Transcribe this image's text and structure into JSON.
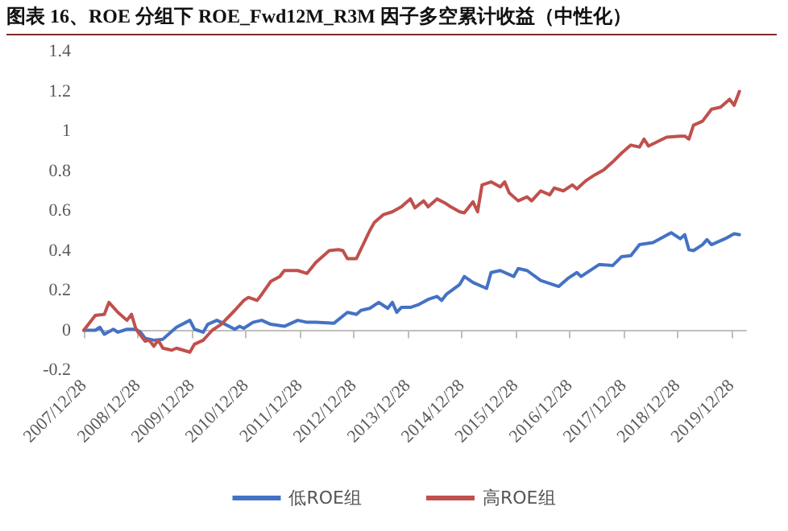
{
  "chart_data": {
    "type": "line",
    "title": "图表 16、ROE 分组下 ROE_Fwd12M_R3M 因子多空累计收益（中性化）",
    "xlim": [
      "2007-12-28",
      "2020-04-05"
    ],
    "xticks": [
      {
        "value": "2007-12-28",
        "label": "2007/12/28"
      },
      {
        "value": "2008-12-28",
        "label": "2008/12/28"
      },
      {
        "value": "2009-12-28",
        "label": "2009/12/28"
      },
      {
        "value": "2010-12-28",
        "label": "2010/12/28"
      },
      {
        "value": "2011-12-28",
        "label": "2011/12/28"
      },
      {
        "value": "2012-12-28",
        "label": "2012/12/28"
      },
      {
        "value": "2013-12-28",
        "label": "2013/12/28"
      },
      {
        "value": "2014-12-28",
        "label": "2014/12/28"
      },
      {
        "value": "2015-12-28",
        "label": "2015/12/28"
      },
      {
        "value": "2016-12-28",
        "label": "2016/12/28"
      },
      {
        "value": "2017-12-28",
        "label": "2017/12/28"
      },
      {
        "value": "2018-12-28",
        "label": "2018/12/28"
      },
      {
        "value": "2019-12-28",
        "label": "2019/12/28"
      }
    ],
    "ylim": [
      -0.2,
      1.4
    ],
    "yticks": [
      -0.2,
      0,
      0.2,
      0.4,
      0.6,
      0.8,
      1,
      1.2,
      1.4
    ],
    "grid": false,
    "legend": "bottom",
    "marker": "none",
    "line_style": "solid",
    "series": [
      {
        "name": "低ROE组",
        "color": "#4472c4",
        "x": [
          "2007-12-28",
          "2008-03",
          "2008-04",
          "2008-05",
          "2008-07",
          "2008-08",
          "2008-10",
          "2008-12",
          "2009-01",
          "2009-02",
          "2009-04",
          "2009-06",
          "2009-07",
          "2009-09",
          "2009-12",
          "2010-01",
          "2010-03",
          "2010-04",
          "2010-06",
          "2010-07",
          "2010-10",
          "2010-11",
          "2010-12",
          "2011-02",
          "2011-04",
          "2011-06",
          "2011-09",
          "2011-12",
          "2012-02",
          "2012-04",
          "2012-08",
          "2012-11",
          "2013-01",
          "2013-02",
          "2013-04",
          "2013-06",
          "2013-08",
          "2013-09",
          "2013-10",
          "2013-11",
          "2014-01",
          "2014-03",
          "2014-05",
          "2014-07",
          "2014-08",
          "2014-09",
          "2014-12",
          "2015-01",
          "2015-03",
          "2015-06",
          "2015-07",
          "2015-09",
          "2015-12",
          "2016-01",
          "2016-03",
          "2016-06",
          "2016-10",
          "2016-12",
          "2017-02",
          "2017-03",
          "2017-07",
          "2017-10",
          "2017-12",
          "2018-02",
          "2018-04",
          "2018-07",
          "2018-11",
          "2019-01",
          "2019-02",
          "2019-03",
          "2019-04",
          "2019-06",
          "2019-07",
          "2019-08",
          "2019-11",
          "2020-01",
          "2020-02-20"
        ],
        "values": [
          0,
          0,
          0.015,
          -0.02,
          0.005,
          -0.01,
          0.005,
          0.005,
          -0.01,
          -0.04,
          -0.05,
          -0.045,
          -0.025,
          0.015,
          0.05,
          0.005,
          -0.01,
          0.03,
          0.05,
          0.04,
          0.005,
          0.02,
          0.01,
          0.04,
          0.05,
          0.03,
          0.02,
          0.05,
          0.04,
          0.04,
          0.035,
          0.09,
          0.08,
          0.1,
          0.11,
          0.14,
          0.11,
          0.14,
          0.09,
          0.115,
          0.115,
          0.13,
          0.155,
          0.17,
          0.15,
          0.18,
          0.23,
          0.27,
          0.24,
          0.21,
          0.29,
          0.3,
          0.27,
          0.31,
          0.3,
          0.25,
          0.22,
          0.26,
          0.29,
          0.27,
          0.33,
          0.325,
          0.37,
          0.375,
          0.43,
          0.44,
          0.49,
          0.46,
          0.48,
          0.405,
          0.4,
          0.43,
          0.455,
          0.43,
          0.46,
          0.485,
          0.48
        ]
      },
      {
        "name": "高ROE组",
        "color": "#c0504d",
        "x": [
          "2007-12-28",
          "2008-03",
          "2008-05",
          "2008-06",
          "2008-08",
          "2008-10",
          "2008-11",
          "2008-12",
          "2009-02",
          "2009-03",
          "2009-04",
          "2009-05",
          "2009-06",
          "2009-08",
          "2009-09",
          "2009-12",
          "2010-01",
          "2010-03",
          "2010-05",
          "2010-07",
          "2010-10",
          "2010-12",
          "2011-01",
          "2011-03",
          "2011-04",
          "2011-06",
          "2011-08",
          "2011-09",
          "2011-12",
          "2012-02",
          "2012-04",
          "2012-07",
          "2012-09",
          "2012-10",
          "2012-11",
          "2013-01",
          "2013-04",
          "2013-05",
          "2013-07",
          "2013-09",
          "2013-11",
          "2014-01",
          "2014-02",
          "2014-04",
          "2014-05",
          "2014-07",
          "2014-09",
          "2014-10",
          "2014-12",
          "2015-01",
          "2015-03",
          "2015-04",
          "2015-05",
          "2015-07",
          "2015-09",
          "2015-10",
          "2015-11",
          "2016-01",
          "2016-03",
          "2016-04",
          "2016-06",
          "2016-08",
          "2016-09",
          "2016-11",
          "2017-01",
          "2017-02",
          "2017-04",
          "2017-06",
          "2017-08",
          "2017-10",
          "2017-12",
          "2018-02",
          "2018-04",
          "2018-05",
          "2018-06",
          "2018-10",
          "2019-01",
          "2019-02",
          "2019-03",
          "2019-04",
          "2019-06",
          "2019-08",
          "2019-10",
          "2019-12",
          "2020-01",
          "2020-02-20"
        ],
        "values": [
          0,
          0.075,
          0.08,
          0.14,
          0.09,
          0.05,
          0.08,
          0.005,
          -0.055,
          -0.05,
          -0.08,
          -0.05,
          -0.09,
          -0.1,
          -0.09,
          -0.11,
          -0.07,
          -0.05,
          0,
          0.03,
          0.1,
          0.15,
          0.165,
          0.15,
          0.18,
          0.245,
          0.27,
          0.3,
          0.3,
          0.285,
          0.34,
          0.4,
          0.405,
          0.4,
          0.36,
          0.36,
          0.5,
          0.54,
          0.58,
          0.595,
          0.62,
          0.66,
          0.615,
          0.65,
          0.62,
          0.66,
          0.635,
          0.62,
          0.595,
          0.59,
          0.645,
          0.595,
          0.73,
          0.745,
          0.72,
          0.745,
          0.69,
          0.65,
          0.67,
          0.65,
          0.7,
          0.68,
          0.715,
          0.7,
          0.73,
          0.71,
          0.75,
          0.78,
          0.805,
          0.845,
          0.89,
          0.93,
          0.92,
          0.96,
          0.925,
          0.97,
          0.975,
          0.975,
          0.96,
          1.03,
          1.05,
          1.11,
          1.12,
          1.16,
          1.13,
          1.2
        ]
      }
    ]
  }
}
